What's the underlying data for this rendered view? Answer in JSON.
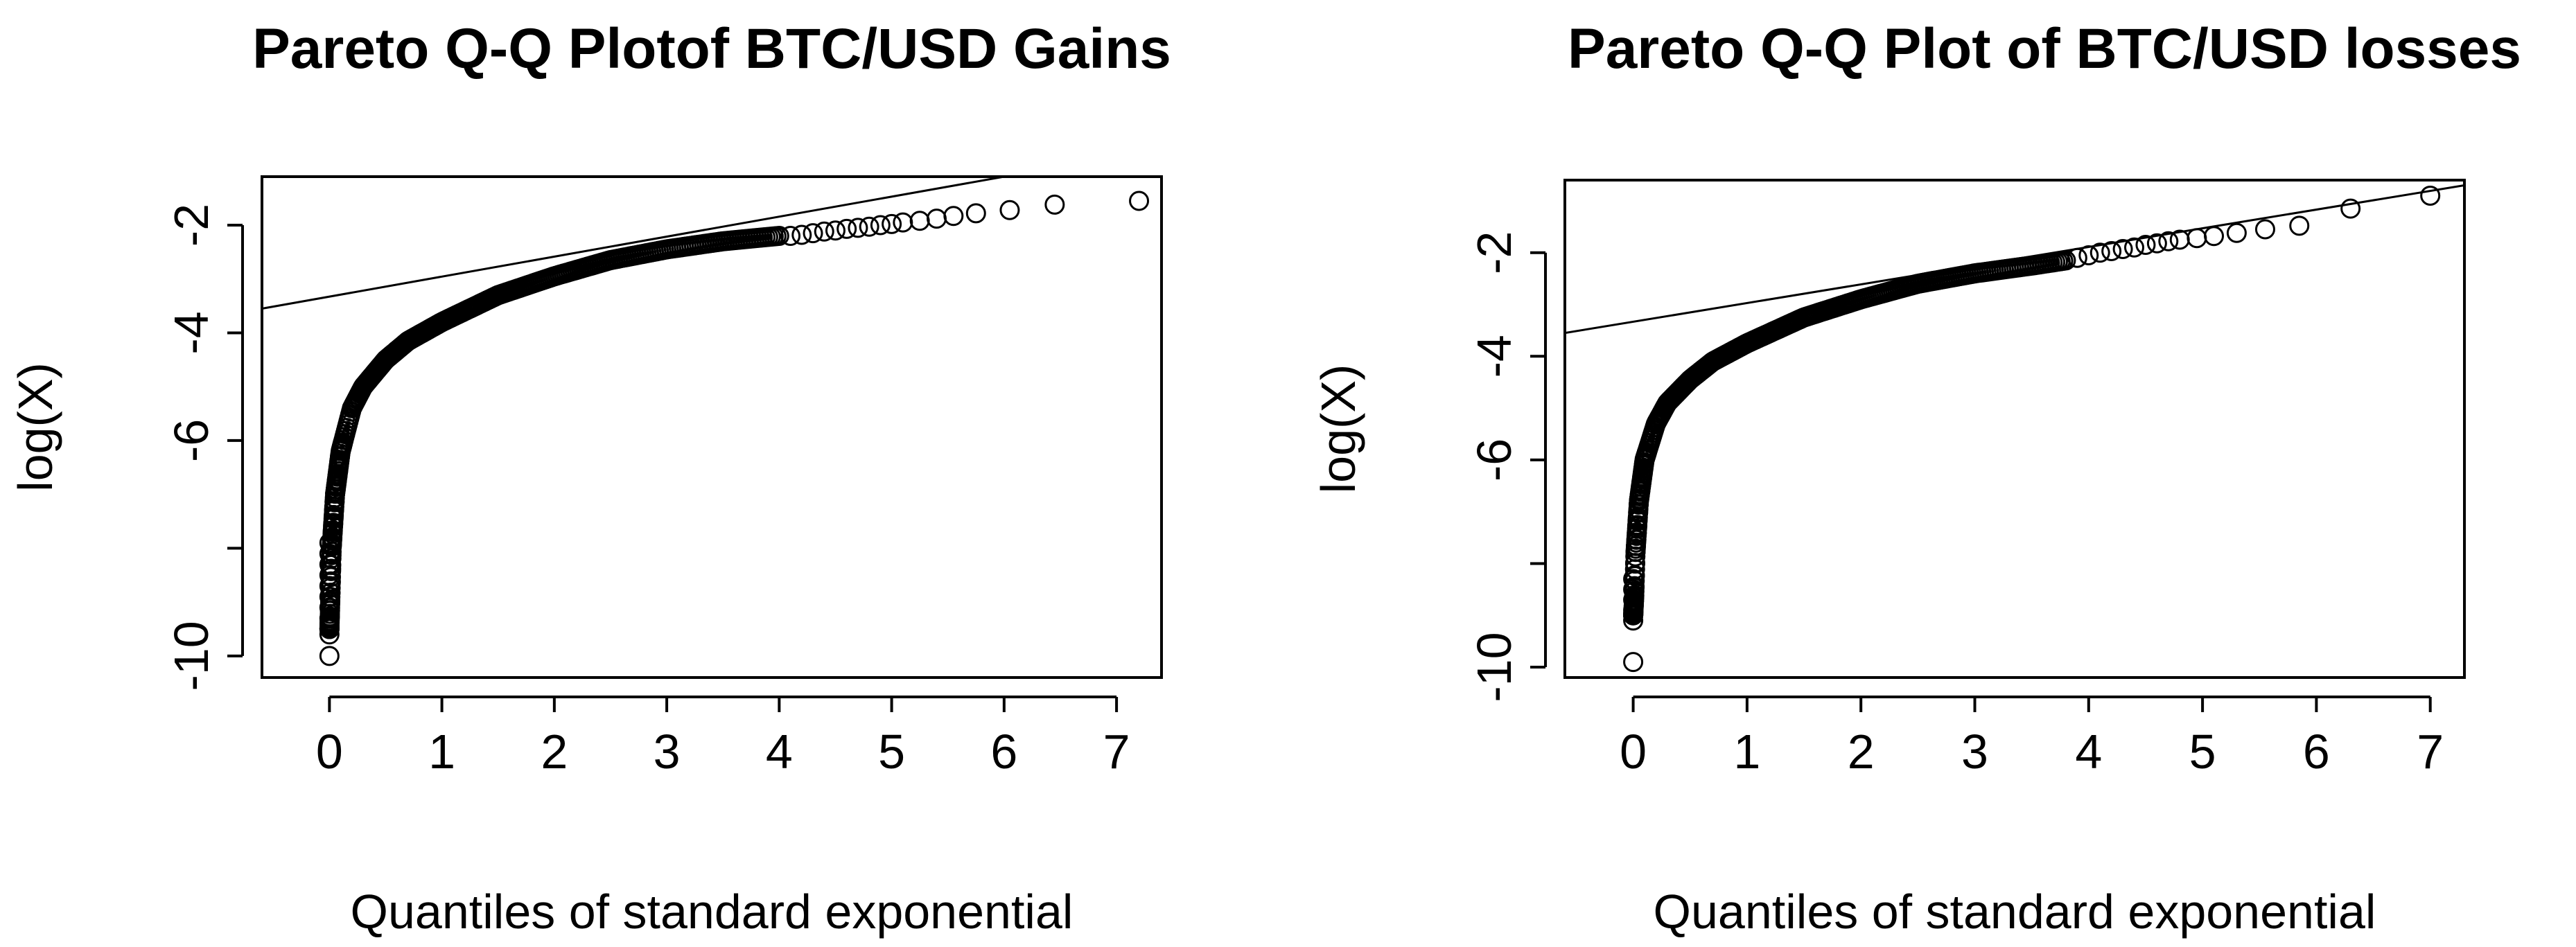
{
  "chart_data": [
    {
      "type": "scatter",
      "title": "Pareto Q-Q Plotof BTC/USD Gains",
      "xlabel": "Quantiles of standard exponential",
      "ylabel": "log(X)",
      "xlim": [
        -0.6,
        7.4
      ],
      "ylim": [
        -10.4,
        -1.1
      ],
      "xticks": [
        0,
        1,
        2,
        3,
        4,
        5,
        6,
        7
      ],
      "yticks": [
        -10,
        -8,
        -6,
        -4,
        -2
      ],
      "ytick_labels": [
        "-10",
        "",
        "-6",
        "-4",
        "-2"
      ],
      "reference_line": {
        "x": [
          -0.6,
          6.0
        ],
        "y": [
          -3.55,
          -1.1
        ]
      },
      "point_curve_anchors": {
        "x": [
          0.0,
          0.01,
          0.02,
          0.05,
          0.1,
          0.2,
          0.3,
          0.5,
          0.7,
          1.0,
          1.5,
          2.0,
          2.5,
          3.0,
          3.5,
          4.0
        ],
        "y": [
          -9.5,
          -8.8,
          -8.0,
          -7.0,
          -6.2,
          -5.4,
          -5.0,
          -4.5,
          -4.15,
          -3.8,
          -3.3,
          -2.95,
          -2.65,
          -2.45,
          -2.3,
          -2.2
        ]
      },
      "sparse_points": {
        "x": [
          0.0,
          0.0,
          0.0,
          0.0,
          0.0,
          0.0,
          0.0,
          0.0,
          0.0,
          0.0,
          4.1,
          4.2,
          4.3,
          4.4,
          4.5,
          4.6,
          4.7,
          4.8,
          4.9,
          5.0,
          5.1,
          5.25,
          5.4,
          5.55,
          5.75,
          6.05,
          6.45,
          7.2
        ],
        "y": [
          -10.0,
          -9.6,
          -9.3,
          -9.1,
          -8.9,
          -8.7,
          -8.5,
          -8.3,
          -8.1,
          -7.9,
          -2.2,
          -2.18,
          -2.15,
          -2.12,
          -2.1,
          -2.07,
          -2.05,
          -2.03,
          -2.0,
          -1.98,
          -1.95,
          -1.92,
          -1.88,
          -1.83,
          -1.78,
          -1.72,
          -1.62,
          -1.55
        ]
      }
    },
    {
      "type": "scatter",
      "title": "Pareto Q-Q Plot of BTC/USD losses",
      "xlabel": "Quantiles of standard exponential",
      "ylabel": "log(X)",
      "xlim": [
        -0.6,
        7.3
      ],
      "ylim": [
        -10.2,
        -0.6
      ],
      "xticks": [
        0,
        1,
        2,
        3,
        4,
        5,
        6,
        7
      ],
      "yticks": [
        -10,
        -8,
        -6,
        -4,
        -2
      ],
      "ytick_labels": [
        "-10",
        "",
        "-6",
        "-4",
        "-2"
      ],
      "reference_line": {
        "x": [
          -0.6,
          7.3
        ],
        "y": [
          -3.55,
          -0.7
        ]
      },
      "point_curve_anchors": {
        "x": [
          0.0,
          0.01,
          0.02,
          0.05,
          0.1,
          0.2,
          0.3,
          0.5,
          0.7,
          1.0,
          1.5,
          2.0,
          2.5,
          3.0,
          3.5,
          3.8
        ],
        "y": [
          -9.0,
          -8.6,
          -7.8,
          -6.8,
          -6.0,
          -5.3,
          -4.9,
          -4.45,
          -4.1,
          -3.75,
          -3.25,
          -2.9,
          -2.6,
          -2.4,
          -2.25,
          -2.15
        ]
      },
      "sparse_points": {
        "x": [
          0.0,
          0.0,
          0.0,
          0.0,
          0.0,
          0.0,
          3.9,
          4.0,
          4.1,
          4.2,
          4.3,
          4.4,
          4.5,
          4.6,
          4.7,
          4.8,
          4.95,
          5.1,
          5.3,
          5.55,
          5.85,
          6.3,
          7.0
        ],
        "y": [
          -9.9,
          -9.1,
          -8.9,
          -8.7,
          -8.5,
          -8.3,
          -2.1,
          -2.05,
          -2.0,
          -1.97,
          -1.93,
          -1.9,
          -1.85,
          -1.82,
          -1.78,
          -1.75,
          -1.72,
          -1.68,
          -1.62,
          -1.55,
          -1.48,
          -1.15,
          -0.9
        ]
      }
    }
  ]
}
